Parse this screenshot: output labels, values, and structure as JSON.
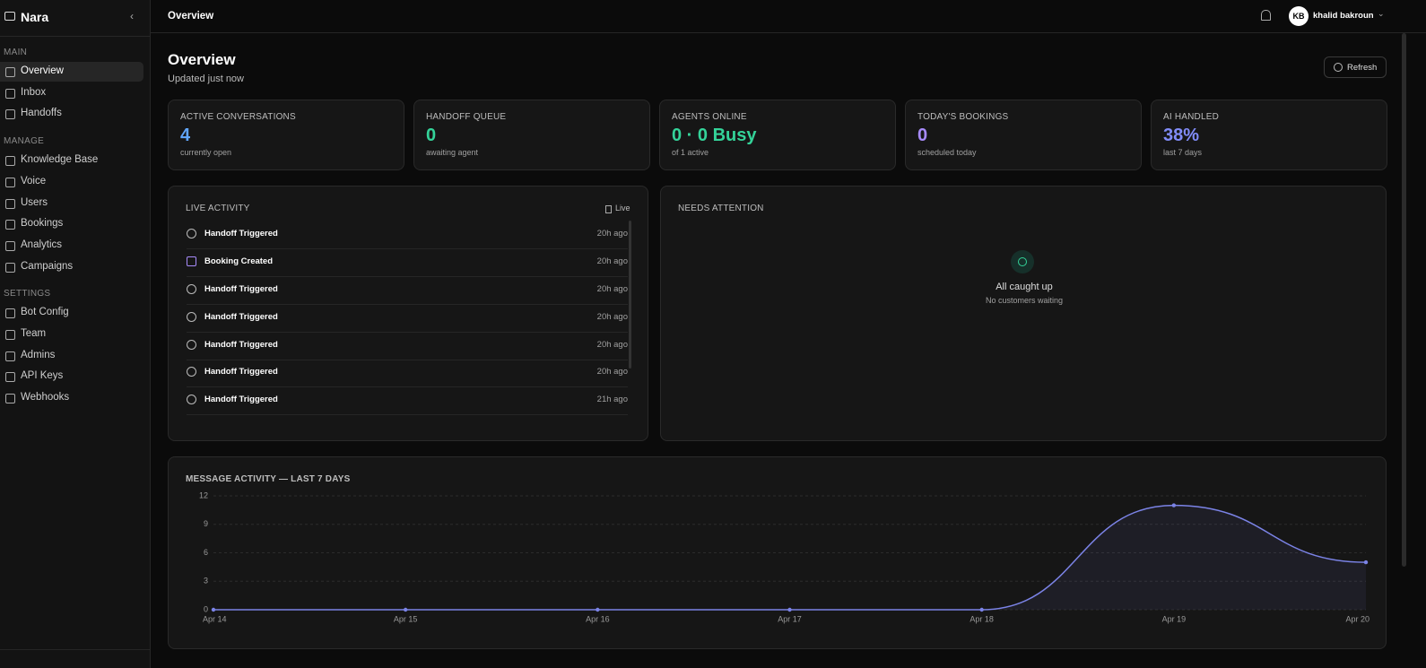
{
  "sidebar": {
    "brand": "Nara",
    "sections": [
      {
        "label": "MAIN",
        "items": [
          "Overview",
          "Inbox",
          "Handoffs"
        ]
      },
      {
        "label": "MANAGE",
        "items": [
          "Knowledge Base",
          "Voice",
          "Users",
          "Bookings",
          "Analytics",
          "Campaigns"
        ]
      },
      {
        "label": "SETTINGS",
        "items": [
          "Bot Config",
          "Team",
          "Admins",
          "API Keys",
          "Webhooks"
        ]
      }
    ]
  },
  "header": {
    "title": "Overview",
    "user": {
      "initials": "KB",
      "name": "khalid bakroun"
    }
  },
  "page": {
    "title": "Overview",
    "subtitle": "Updated just now",
    "refresh": "Refresh"
  },
  "stats": [
    {
      "label": "ACTIVE CONVERSATIONS",
      "value": 4,
      "sub": "currently open",
      "color": "#60a5fa"
    },
    {
      "label": "HANDOFF QUEUE",
      "value": 0,
      "sub": "awaiting agent",
      "color": "#34d399"
    },
    {
      "label": "AGENTS ONLINE",
      "value": "0 · 0 Busy",
      "sub": "of 1 active",
      "color": "#34d399"
    },
    {
      "label": "TODAY'S BOOKINGS",
      "value": 0,
      "sub": "scheduled today",
      "color": "#a78bfa"
    },
    {
      "label": "AI HANDLED",
      "value": "38%",
      "sub": "last 7 days",
      "color": "#818cf8"
    }
  ],
  "live_activity": {
    "title": "LIVE ACTIVITY",
    "badge": "Live",
    "events": [
      {
        "type": "Handoff Triggered",
        "time": "20h ago"
      },
      {
        "type": "Booking Created",
        "time": "20h ago"
      },
      {
        "type": "Handoff Triggered",
        "time": "20h ago"
      },
      {
        "type": "Handoff Triggered",
        "time": "20h ago"
      },
      {
        "type": "Handoff Triggered",
        "time": "20h ago"
      },
      {
        "type": "Handoff Triggered",
        "time": "20h ago"
      },
      {
        "type": "Handoff Triggered",
        "time": "21h ago"
      }
    ]
  },
  "needs_attention": {
    "title": "NEEDS ATTENTION",
    "empty_title": "All caught up",
    "empty_text": "No customers waiting"
  },
  "chart_data": {
    "type": "line",
    "title": "MESSAGE ACTIVITY — LAST 7 DAYS",
    "categories": [
      "Apr 14",
      "Apr 15",
      "Apr 16",
      "Apr 17",
      "Apr 18",
      "Apr 19",
      "Apr 20"
    ],
    "values": [
      0,
      0,
      0,
      0,
      0,
      11,
      5
    ],
    "color": "#7b83e6",
    "ylim": [
      0,
      12
    ],
    "yticks": [
      0,
      3,
      6,
      9,
      12
    ],
    "grid": true
  }
}
